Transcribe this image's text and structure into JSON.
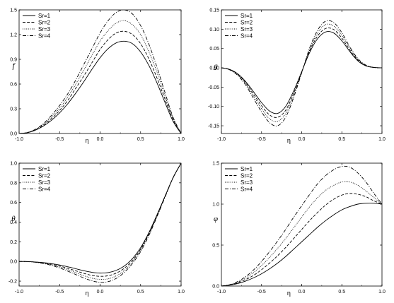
{
  "figure": {
    "panels": [
      {
        "xlabel": "η",
        "ylabel": "f"
      },
      {
        "xlabel": "η",
        "ylabel": "g"
      },
      {
        "xlabel": "η",
        "ylabel": "θ"
      },
      {
        "xlabel": "η",
        "ylabel": "φ"
      }
    ]
  },
  "chart_data": [
    {
      "type": "line",
      "title": "",
      "xlabel": "η",
      "ylabel": "f",
      "xlim": [
        -1.0,
        1.0
      ],
      "ylim": [
        0.0,
        1.5
      ],
      "xticks": [
        "-1.0",
        "-0.5",
        "0.0",
        "0.5",
        "1.0"
      ],
      "yticks": [
        "0.0",
        "0.3",
        "0.6",
        "0.9",
        "1.2",
        "1.5"
      ],
      "legend": {
        "placement": "top-left",
        "entries": [
          "Sr=1",
          "Sr=2",
          "Sr=3",
          "Sr=4"
        ]
      },
      "grid": false,
      "x": [
        -1.0,
        -0.9,
        -0.8,
        -0.7,
        -0.6,
        -0.5,
        -0.4,
        -0.3,
        -0.2,
        -0.1,
        0.0,
        0.1,
        0.2,
        0.3,
        0.4,
        0.5,
        0.6,
        0.7,
        0.8,
        0.9,
        1.0
      ],
      "series": [
        {
          "name": "Sr=1",
          "style": "solid",
          "values": [
            0.0,
            0.01,
            0.04,
            0.09,
            0.16,
            0.25,
            0.36,
            0.49,
            0.63,
            0.78,
            0.92,
            1.03,
            1.1,
            1.12,
            1.09,
            0.99,
            0.83,
            0.62,
            0.38,
            0.15,
            0.0
          ]
        },
        {
          "name": "Sr=2",
          "style": "dashed",
          "values": [
            0.0,
            0.01,
            0.04,
            0.1,
            0.18,
            0.28,
            0.4,
            0.55,
            0.7,
            0.86,
            1.02,
            1.14,
            1.22,
            1.24,
            1.2,
            1.09,
            0.91,
            0.68,
            0.42,
            0.17,
            0.0
          ]
        },
        {
          "name": "Sr=3",
          "style": "dotted",
          "values": [
            0.0,
            0.01,
            0.05,
            0.11,
            0.2,
            0.31,
            0.44,
            0.6,
            0.77,
            0.95,
            1.12,
            1.25,
            1.34,
            1.37,
            1.32,
            1.2,
            1.0,
            0.75,
            0.46,
            0.19,
            0.0
          ]
        },
        {
          "name": "Sr=4",
          "style": "dashdot",
          "values": [
            0.0,
            0.01,
            0.05,
            0.12,
            0.22,
            0.34,
            0.48,
            0.65,
            0.84,
            1.03,
            1.22,
            1.37,
            1.47,
            1.5,
            1.45,
            1.31,
            1.09,
            0.81,
            0.5,
            0.2,
            0.0
          ]
        }
      ]
    },
    {
      "type": "line",
      "title": "",
      "xlabel": "η",
      "ylabel": "g",
      "xlim": [
        -1.0,
        1.0
      ],
      "ylim": [
        -0.17,
        0.15
      ],
      "xticks": [
        "-1.0",
        "-0.5",
        "0.0",
        "0.5",
        "1.0"
      ],
      "yticks": [
        "-0.15",
        "-0.10",
        "-0.05",
        "0.00",
        "0.05",
        "0.10",
        "0.15"
      ],
      "legend": {
        "placement": "top-left",
        "entries": [
          "Sr=1",
          "Sr=2",
          "Sr=3",
          "Sr=4"
        ]
      },
      "grid": false,
      "x": [
        -1.0,
        -0.9,
        -0.8,
        -0.7,
        -0.6,
        -0.5,
        -0.4,
        -0.3,
        -0.2,
        -0.1,
        0.0,
        0.1,
        0.2,
        0.3,
        0.4,
        0.5,
        0.6,
        0.7,
        0.8,
        0.9,
        1.0
      ],
      "series": [
        {
          "name": "Sr=1",
          "style": "solid",
          "values": [
            0.0,
            -0.004,
            -0.015,
            -0.035,
            -0.062,
            -0.09,
            -0.112,
            -0.118,
            -0.1,
            -0.06,
            -0.01,
            0.04,
            0.076,
            0.093,
            0.09,
            0.07,
            0.042,
            0.018,
            0.005,
            0.001,
            0.0
          ]
        },
        {
          "name": "Sr=2",
          "style": "dashed",
          "values": [
            0.0,
            -0.004,
            -0.016,
            -0.038,
            -0.068,
            -0.098,
            -0.122,
            -0.128,
            -0.11,
            -0.066,
            -0.011,
            0.044,
            0.083,
            0.102,
            0.099,
            0.077,
            0.046,
            0.02,
            0.006,
            0.001,
            0.0
          ]
        },
        {
          "name": "Sr=3",
          "style": "dotted",
          "values": [
            0.0,
            -0.005,
            -0.018,
            -0.041,
            -0.073,
            -0.106,
            -0.132,
            -0.139,
            -0.118,
            -0.071,
            -0.012,
            0.048,
            0.091,
            0.112,
            0.108,
            0.084,
            0.05,
            0.022,
            0.006,
            0.001,
            0.0
          ]
        },
        {
          "name": "Sr=4",
          "style": "dashdot",
          "values": [
            0.0,
            -0.005,
            -0.019,
            -0.044,
            -0.079,
            -0.114,
            -0.142,
            -0.15,
            -0.128,
            -0.077,
            -0.013,
            0.052,
            0.098,
            0.121,
            0.117,
            0.091,
            0.054,
            0.024,
            0.007,
            0.001,
            0.0
          ]
        }
      ]
    },
    {
      "type": "line",
      "title": "",
      "xlabel": "η",
      "ylabel": "θ",
      "xlim": [
        -1.0,
        1.0
      ],
      "ylim": [
        -0.25,
        1.0
      ],
      "xticks": [
        "-1.0",
        "-0.5",
        "0.0",
        "0.5",
        "1.0"
      ],
      "yticks": [
        "-0.2",
        "0.0",
        "0.2",
        "0.4",
        "0.6",
        "0.8",
        "1.0"
      ],
      "legend": {
        "placement": "top-left",
        "entries": [
          "Sr=1",
          "Sr=2",
          "Sr=3",
          "Sr=4"
        ]
      },
      "grid": false,
      "x": [
        -1.0,
        -0.9,
        -0.8,
        -0.7,
        -0.6,
        -0.5,
        -0.4,
        -0.3,
        -0.2,
        -0.1,
        0.0,
        0.1,
        0.2,
        0.3,
        0.4,
        0.5,
        0.6,
        0.7,
        0.8,
        0.9,
        1.0
      ],
      "series": [
        {
          "name": "Sr=1",
          "style": "solid",
          "values": [
            0.0,
            -0.001,
            -0.005,
            -0.012,
            -0.022,
            -0.036,
            -0.054,
            -0.074,
            -0.094,
            -0.11,
            -0.118,
            -0.113,
            -0.09,
            -0.045,
            0.03,
            0.14,
            0.29,
            0.47,
            0.66,
            0.85,
            1.0
          ]
        },
        {
          "name": "Sr=2",
          "style": "dashed",
          "values": [
            0.0,
            -0.001,
            -0.006,
            -0.015,
            -0.028,
            -0.046,
            -0.069,
            -0.095,
            -0.121,
            -0.142,
            -0.151,
            -0.145,
            -0.118,
            -0.068,
            0.01,
            0.125,
            0.28,
            0.46,
            0.66,
            0.85,
            1.0
          ]
        },
        {
          "name": "Sr=3",
          "style": "dotted",
          "values": [
            0.0,
            -0.001,
            -0.007,
            -0.018,
            -0.034,
            -0.056,
            -0.083,
            -0.114,
            -0.145,
            -0.17,
            -0.182,
            -0.176,
            -0.146,
            -0.09,
            -0.005,
            0.112,
            0.27,
            0.455,
            0.655,
            0.85,
            1.0
          ]
        },
        {
          "name": "Sr=4",
          "style": "dashdot",
          "values": [
            0.0,
            -0.002,
            -0.008,
            -0.021,
            -0.04,
            -0.066,
            -0.098,
            -0.133,
            -0.168,
            -0.197,
            -0.212,
            -0.205,
            -0.172,
            -0.11,
            -0.02,
            0.1,
            0.26,
            0.45,
            0.65,
            0.85,
            1.0
          ]
        }
      ]
    },
    {
      "type": "line",
      "title": "",
      "xlabel": "η",
      "ylabel": "φ",
      "xlim": [
        -1.0,
        1.0
      ],
      "ylim": [
        0.0,
        1.5
      ],
      "xticks": [
        "-1.0",
        "-0.5",
        "0.0",
        "0.5",
        "1.0"
      ],
      "yticks": [
        "0.0",
        "0.5",
        "1.0",
        "1.5"
      ],
      "legend": {
        "placement": "top-left",
        "entries": [
          "Sr=1",
          "Sr=2",
          "Sr=3",
          "Sr=4"
        ]
      },
      "grid": false,
      "x": [
        -1.0,
        -0.9,
        -0.8,
        -0.7,
        -0.6,
        -0.5,
        -0.4,
        -0.3,
        -0.2,
        -0.1,
        0.0,
        0.1,
        0.2,
        0.3,
        0.4,
        0.5,
        0.6,
        0.7,
        0.8,
        0.9,
        1.0
      ],
      "series": [
        {
          "name": "Sr=1",
          "style": "solid",
          "values": [
            0.0,
            0.01,
            0.03,
            0.06,
            0.1,
            0.15,
            0.21,
            0.28,
            0.36,
            0.45,
            0.54,
            0.63,
            0.72,
            0.8,
            0.87,
            0.93,
            0.97,
            1.0,
            1.01,
            1.01,
            1.0
          ]
        },
        {
          "name": "Sr=2",
          "style": "dashed",
          "values": [
            0.0,
            0.012,
            0.038,
            0.078,
            0.13,
            0.2,
            0.28,
            0.37,
            0.47,
            0.58,
            0.69,
            0.8,
            0.9,
            0.99,
            1.06,
            1.11,
            1.13,
            1.12,
            1.09,
            1.04,
            1.0
          ]
        },
        {
          "name": "Sr=3",
          "style": "dotted",
          "values": [
            0.0,
            0.014,
            0.046,
            0.096,
            0.165,
            0.25,
            0.35,
            0.46,
            0.58,
            0.71,
            0.84,
            0.97,
            1.08,
            1.17,
            1.23,
            1.27,
            1.27,
            1.23,
            1.16,
            1.08,
            1.0
          ]
        },
        {
          "name": "Sr=4",
          "style": "dashdot",
          "values": [
            0.0,
            0.016,
            0.054,
            0.114,
            0.196,
            0.3,
            0.42,
            0.55,
            0.69,
            0.84,
            0.98,
            1.12,
            1.25,
            1.35,
            1.42,
            1.46,
            1.45,
            1.38,
            1.27,
            1.13,
            1.0
          ]
        }
      ]
    }
  ]
}
